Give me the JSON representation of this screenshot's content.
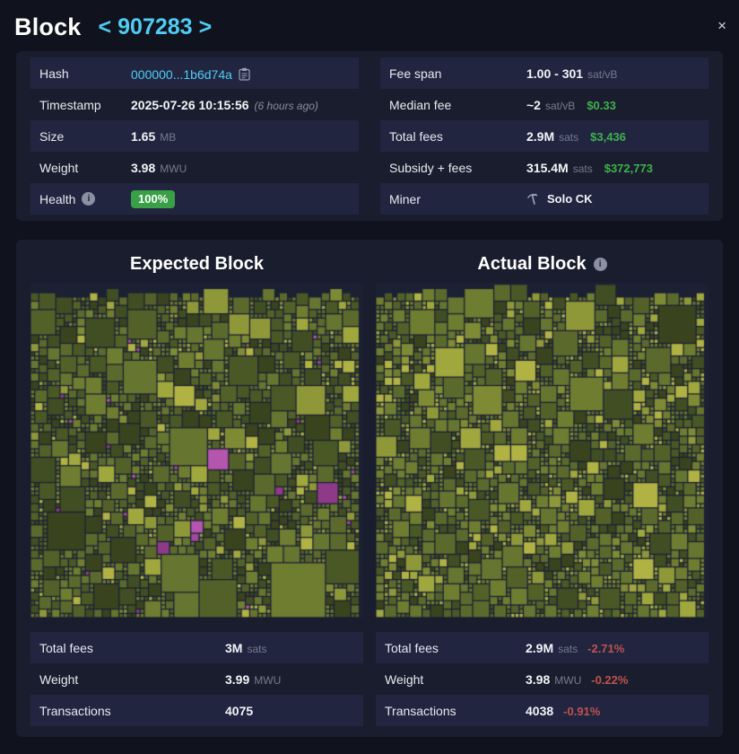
{
  "header": {
    "title": "Block",
    "prev_label": "<",
    "block_height": "907283",
    "next_label": ">",
    "close_label": "×"
  },
  "details": {
    "left_rows": [
      {
        "label": "Hash",
        "value": "000000...1b6d74a"
      },
      {
        "label": "Timestamp",
        "value": "2025-07-26 10:15:56",
        "suffix": "(6 hours ago)"
      },
      {
        "label": "Size",
        "value": "1.65",
        "unit": "MB"
      },
      {
        "label": "Weight",
        "value": "3.98",
        "unit": "MWU"
      },
      {
        "label": "Health",
        "badge": "100%"
      }
    ],
    "right_rows": [
      {
        "label": "Fee span",
        "value": "1.00 - 301",
        "unit": "sat/vB"
      },
      {
        "label": "Median fee",
        "value": "~2",
        "unit": "sat/vB",
        "usd": "$0.33"
      },
      {
        "label": "Total fees",
        "value": "2.9M",
        "unit": "sats",
        "usd": "$3,436"
      },
      {
        "label": "Subsidy + fees",
        "value": "315.4M",
        "unit": "sats",
        "usd": "$372,773"
      },
      {
        "label": "Miner",
        "value": "Solo CK"
      }
    ]
  },
  "comparison": {
    "expected_heading": "Expected Block",
    "actual_heading": "Actual Block",
    "expected_rows": [
      {
        "label": "Total fees",
        "value": "3M",
        "unit": "sats"
      },
      {
        "label": "Weight",
        "value": "3.99",
        "unit": "MWU"
      },
      {
        "label": "Transactions",
        "value": "4075"
      }
    ],
    "actual_rows": [
      {
        "label": "Total fees",
        "value": "2.9M",
        "unit": "sats",
        "delta": "-2.71%"
      },
      {
        "label": "Weight",
        "value": "3.98",
        "unit": "MWU",
        "delta": "-0.22%"
      },
      {
        "label": "Transactions",
        "value": "4038",
        "delta": "-0.91%"
      }
    ]
  },
  "colors": {
    "page_bg": "#10121d",
    "panel_bg": "#1a1d2d",
    "row_highlight": "#212540",
    "text": "#f3f4f8",
    "muted": "#767b8e",
    "link_cyan": "#4fcdf4",
    "green": "#3fb14b",
    "badge_green": "#3aa048",
    "red": "#bd544e",
    "treemap_bg": "#1c2033"
  },
  "treemap": {
    "cell": 4.7,
    "expected": {
      "seed": 90728,
      "magenta_prob": 0.018,
      "bright_prob": 0.12
    },
    "actual": {
      "seed": 31337,
      "magenta_prob": 0,
      "bright_prob": 0.22
    },
    "palette": {
      "dark": [
        "#39431e",
        "#414d22",
        "#4a5826",
        "#536129"
      ],
      "mid": [
        "#5b6a2c",
        "#66752f",
        "#6f7d31"
      ],
      "bright": [
        "#7f8b34",
        "#8f9838",
        "#9fa73d",
        "#b0b243"
      ],
      "magenta": [
        "#8f3a88",
        "#a347a0",
        "#b455ae"
      ]
    }
  }
}
